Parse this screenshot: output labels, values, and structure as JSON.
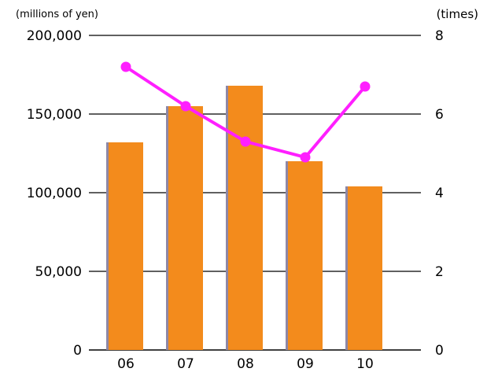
{
  "chart_data": {
    "type": "bar",
    "categories": [
      "06",
      "07",
      "08",
      "09",
      "10"
    ],
    "series": [
      {
        "axis": "left",
        "type": "bar",
        "values": [
          132000,
          155000,
          168000,
          120000,
          104000
        ]
      },
      {
        "axis": "right",
        "type": "line",
        "values": [
          7.2,
          6.2,
          5.3,
          4.9,
          6.7
        ]
      }
    ],
    "left_axis": {
      "unit_label": "(millions of yen)",
      "ylim": [
        0,
        200000
      ],
      "ticks": [
        "0",
        "50,000",
        "100,000",
        "150,000",
        "200,000"
      ]
    },
    "right_axis": {
      "unit_label": "(times)",
      "ylim": [
        0,
        8
      ],
      "ticks": [
        "0",
        "2",
        "4",
        "6",
        "8"
      ]
    },
    "grid": true,
    "colors": {
      "bar": "#F38B1C",
      "bar_shadow": "#8E87A6",
      "line": "#FF1FFF",
      "grid": "#000000"
    }
  }
}
